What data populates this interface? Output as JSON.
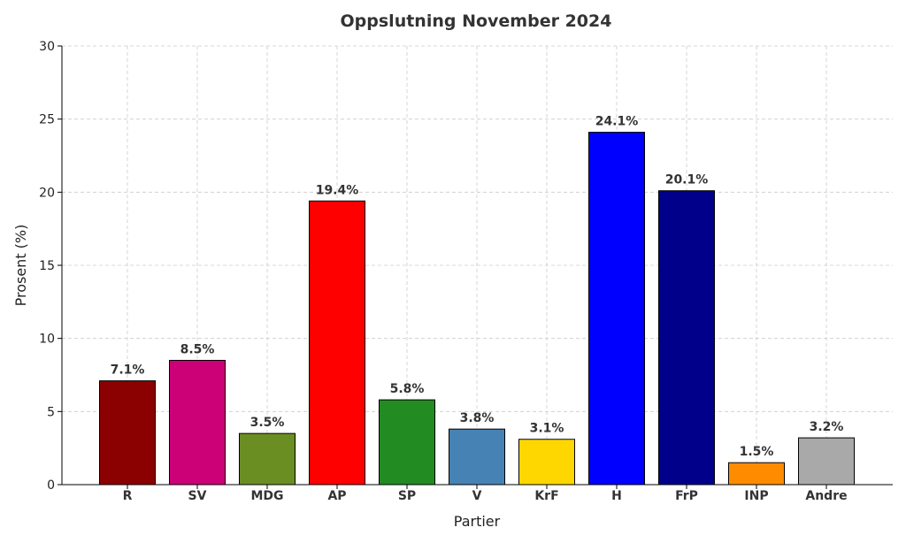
{
  "chart_data": {
    "type": "bar",
    "title": "Oppslutning November 2024",
    "xlabel": "Partier",
    "ylabel": "Prosent (%)",
    "ylim": [
      0,
      30
    ],
    "yticks": [
      0,
      5,
      10,
      15,
      20,
      25,
      30
    ],
    "grid": true,
    "categories": [
      "R",
      "SV",
      "MDG",
      "AP",
      "SP",
      "V",
      "KrF",
      "H",
      "FrP",
      "INP",
      "Andre"
    ],
    "values": [
      7.1,
      8.5,
      3.5,
      19.4,
      5.8,
      3.8,
      3.1,
      24.1,
      20.1,
      1.5,
      3.2
    ],
    "value_labels": [
      "7.1%",
      "8.5%",
      "3.5%",
      "19.4%",
      "5.8%",
      "3.8%",
      "3.1%",
      "24.1%",
      "20.1%",
      "1.5%",
      "3.2%"
    ],
    "colors": [
      "#8B0000",
      "#CC0077",
      "#6B8E23",
      "#FF0000",
      "#228B22",
      "#4682B4",
      "#FFD700",
      "#0000FF",
      "#00008B",
      "#FF8C00",
      "#A9A9A9"
    ]
  }
}
